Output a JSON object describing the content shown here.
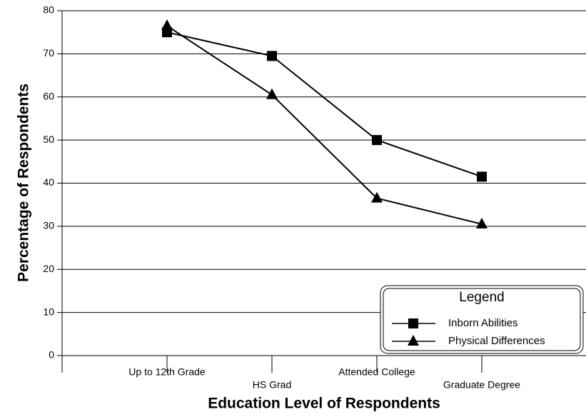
{
  "chart_data": {
    "type": "line",
    "xlabel": "Education Level of Respondents",
    "ylabel": "Percentage of Respondents",
    "categories": [
      "Up to 12th Grade",
      "HS Grad",
      "Attended College",
      "Graduate Degree"
    ],
    "series": [
      {
        "name": "Inborn Abilities",
        "color": "#000000",
        "marker": "square",
        "values": [
          75,
          69.5,
          50,
          41.5
        ]
      },
      {
        "name": "Physical Differences",
        "color": "#000000",
        "marker": "triangle",
        "values": [
          76.5,
          60.5,
          36.5,
          30.5
        ]
      }
    ],
    "ylim": [
      0,
      80
    ],
    "yticks": [
      0,
      10,
      20,
      30,
      40,
      50,
      60,
      70,
      80
    ],
    "grid": true,
    "legend_title": "Legend",
    "legend_position": "lower right"
  }
}
